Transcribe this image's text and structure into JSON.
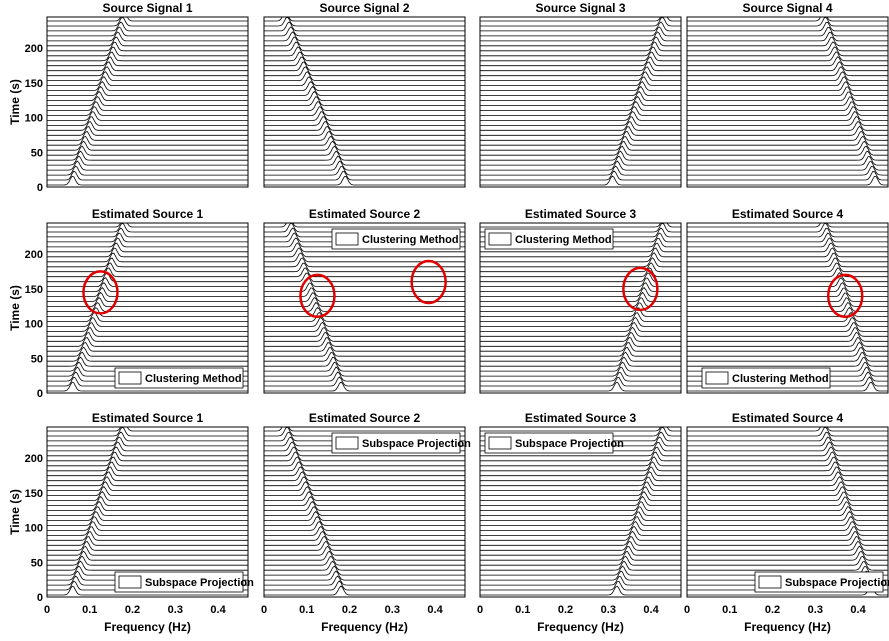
{
  "figure": {
    "xlabel": "Frequency (Hz)",
    "ylabel": "Time (s)",
    "xticks": [
      "0",
      "0.1",
      "0.2",
      "0.3",
      "0.4"
    ],
    "yticks": [
      "0",
      "50",
      "100",
      "150",
      "200"
    ]
  },
  "chart_data": {
    "type": "waterfall",
    "x_range": [
      0,
      0.47
    ],
    "y_range": [
      0,
      245
    ],
    "grid": false,
    "rows": [
      {
        "ylabel": "Time (s)",
        "panels": [
          {
            "title": "Source Signal 1",
            "freq_start": 0.06,
            "freq_end": 0.18,
            "legend": "",
            "legend_position": "",
            "circles": []
          },
          {
            "title": "Source Signal 2",
            "freq_start": 0.19,
            "freq_end": 0.05,
            "legend": "",
            "legend_position": "",
            "circles": []
          },
          {
            "title": "Source Signal 3",
            "freq_start": 0.31,
            "freq_end": 0.43,
            "legend": "",
            "legend_position": "",
            "circles": []
          },
          {
            "title": "Source Signal 4",
            "freq_start": 0.44,
            "freq_end": 0.32,
            "legend": "",
            "legend_position": "",
            "circles": []
          }
        ]
      },
      {
        "ylabel": "Time (s)",
        "panels": [
          {
            "title": "Estimated Source 1",
            "freq_start": 0.06,
            "freq_end": 0.18,
            "legend": "Clustering Method",
            "legend_position": "bottom-right",
            "circles": [
              {
                "x": 0.125,
                "y": 145
              }
            ]
          },
          {
            "title": "Estimated Source 2",
            "freq_start": 0.18,
            "freq_end": 0.06,
            "legend": "Clustering Method",
            "legend_position": "top-right",
            "circles": [
              {
                "x": 0.125,
                "y": 140
              },
              {
                "x": 0.385,
                "y": 160
              }
            ]
          },
          {
            "title": "Estimated Source 3",
            "freq_start": 0.32,
            "freq_end": 0.43,
            "legend": "Clustering Method",
            "legend_position": "top-left",
            "circles": [
              {
                "x": 0.375,
                "y": 150
              }
            ]
          },
          {
            "title": "Estimated Source 4",
            "freq_start": 0.43,
            "freq_end": 0.32,
            "legend": "Clustering Method",
            "legend_position": "bottom-left",
            "circles": [
              {
                "x": 0.37,
                "y": 140
              }
            ]
          }
        ]
      },
      {
        "ylabel": "Time (s)",
        "panels": [
          {
            "title": "Estimated Source 1",
            "freq_start": 0.06,
            "freq_end": 0.18,
            "legend": "Subspace Projection",
            "legend_position": "bottom-right",
            "circles": []
          },
          {
            "title": "Estimated Source 2",
            "freq_start": 0.18,
            "freq_end": 0.05,
            "legend": "Subspace Projection",
            "legend_position": "top-right",
            "circles": []
          },
          {
            "title": "Estimated Source 3",
            "freq_start": 0.32,
            "freq_end": 0.43,
            "legend": "Subspace Projection",
            "legend_position": "top-left",
            "circles": []
          },
          {
            "title": "Estimated Source 4",
            "freq_start": 0.43,
            "freq_end": 0.32,
            "legend": "Subspace Projection",
            "legend_position": "bottom-right",
            "circles": []
          }
        ]
      }
    ],
    "colors": {
      "trace": "#000000",
      "circle": "#e00000",
      "axis": "#000000"
    }
  }
}
